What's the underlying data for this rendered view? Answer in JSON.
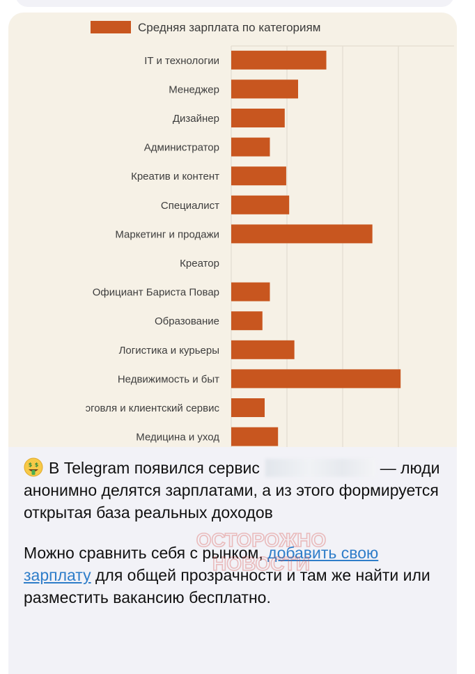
{
  "chart_data": {
    "type": "bar",
    "title": "",
    "series": [
      {
        "name": "Средняя зарплата по категориям",
        "color": "#c8561f"
      }
    ],
    "categories": [
      "IT и технологии",
      "Менеджер",
      "Дизайнер",
      "Администратор",
      "Креатив и контент",
      "Специалист",
      "Маркетинг и продажи",
      "Креатор",
      "Официант Бариста Повар",
      "Образование",
      "Логистика и курьеры",
      "Недвижимость и быт",
      "ɔговля и клиентский сервис",
      "Медицина и уход"
    ],
    "values": [
      1.28,
      0.9,
      0.72,
      0.52,
      0.74,
      0.78,
      1.9,
      0,
      0.52,
      0.42,
      0.85,
      2.28,
      0.45,
      0.63
    ],
    "xlim": [
      0,
      3
    ],
    "grid": true,
    "legend_position": "top"
  },
  "message": {
    "emoji_name": "money-mouth-face-emoji",
    "line1_text": "В Telegram появился сервис",
    "line1_rest": "— люди анонимно делятся зарплатами, а из этого формируется открытая база реальных доходов",
    "para2_before": "Можно сравнить себя с рынком, ",
    "para2_link": "добавить свою зарплату",
    "para2_after": " для общей прозрачности и там же найти или разместить вакансию бесплатно."
  },
  "watermark": {
    "line1": "ОСТОРОЖНО",
    "line2": "НОВОСТИ",
    "color": "#d9534f"
  }
}
